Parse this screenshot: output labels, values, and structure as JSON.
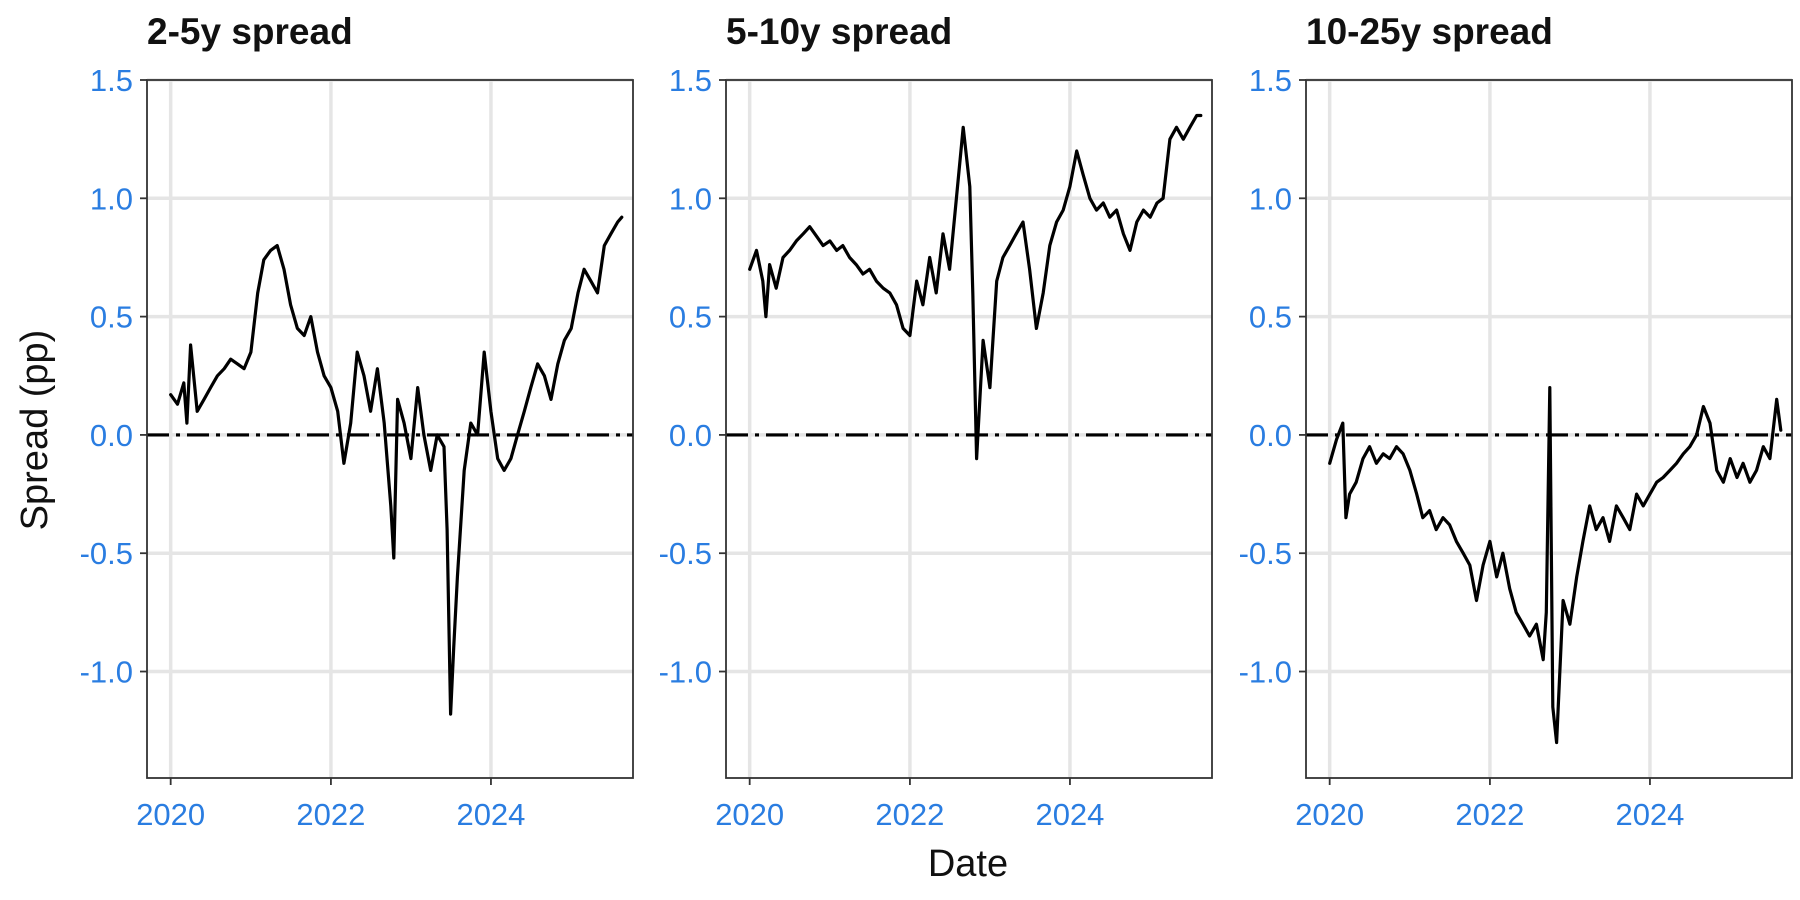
{
  "chart_data": {
    "type": "line",
    "xlabel": "Date",
    "ylabel": "Spread (pp)",
    "ylim": [
      -1.45,
      1.5
    ],
    "yticks": [
      -1.0,
      -0.5,
      0.0,
      0.5,
      1.0,
      1.5
    ],
    "ytick_labels": [
      "-1.0",
      "-0.5",
      "0.0",
      "0.5",
      "1.0",
      "1.5"
    ],
    "xlim": [
      "2019-09-15",
      "2025-10-10"
    ],
    "xticks": [
      "2020-01-01",
      "2022-01-01",
      "2024-01-01"
    ],
    "xtick_labels": [
      "2020",
      "2022",
      "2024"
    ],
    "grid": true,
    "reference_line": {
      "y": 0.0,
      "style": "dashdot"
    },
    "panels": [
      {
        "title": "2-5y spread",
        "x": [
          "2020-01-01",
          "2020-02-01",
          "2020-03-01",
          "2020-03-15",
          "2020-04-01",
          "2020-05-01",
          "2020-06-01",
          "2020-07-01",
          "2020-08-01",
          "2020-09-01",
          "2020-10-01",
          "2020-11-01",
          "2020-12-01",
          "2021-01-01",
          "2021-02-01",
          "2021-03-01",
          "2021-04-01",
          "2021-05-01",
          "2021-06-01",
          "2021-07-01",
          "2021-08-01",
          "2021-09-01",
          "2021-10-01",
          "2021-11-01",
          "2021-12-01",
          "2022-01-01",
          "2022-02-01",
          "2022-03-01",
          "2022-04-01",
          "2022-05-01",
          "2022-06-01",
          "2022-07-01",
          "2022-08-01",
          "2022-09-01",
          "2022-10-01",
          "2022-10-15",
          "2022-11-01",
          "2022-12-01",
          "2023-01-01",
          "2023-02-01",
          "2023-03-01",
          "2023-04-01",
          "2023-05-01",
          "2023-06-01",
          "2023-06-15",
          "2023-07-01",
          "2023-07-15",
          "2023-08-01",
          "2023-09-01",
          "2023-10-01",
          "2023-11-01",
          "2023-12-01",
          "2024-01-01",
          "2024-02-01",
          "2024-03-01",
          "2024-04-01",
          "2024-05-01",
          "2024-06-01",
          "2024-07-01",
          "2024-08-01",
          "2024-09-01",
          "2024-10-01",
          "2024-11-01",
          "2024-12-01",
          "2025-01-01",
          "2025-02-01",
          "2025-03-01",
          "2025-04-01",
          "2025-05-01",
          "2025-06-01",
          "2025-07-01",
          "2025-08-01",
          "2025-08-20"
        ],
        "y": [
          0.17,
          0.13,
          0.22,
          0.05,
          0.38,
          0.1,
          0.15,
          0.2,
          0.25,
          0.28,
          0.32,
          0.3,
          0.28,
          0.35,
          0.6,
          0.74,
          0.78,
          0.8,
          0.7,
          0.55,
          0.45,
          0.42,
          0.5,
          0.35,
          0.25,
          0.2,
          0.1,
          -0.12,
          0.05,
          0.35,
          0.25,
          0.1,
          0.28,
          0.05,
          -0.3,
          -0.52,
          0.15,
          0.05,
          -0.1,
          0.2,
          0.0,
          -0.15,
          0.0,
          -0.05,
          -0.4,
          -1.18,
          -0.9,
          -0.6,
          -0.15,
          0.05,
          0.0,
          0.35,
          0.1,
          -0.1,
          -0.15,
          -0.1,
          0.0,
          0.1,
          0.2,
          0.3,
          0.25,
          0.15,
          0.3,
          0.4,
          0.45,
          0.6,
          0.7,
          0.65,
          0.6,
          0.8,
          0.85,
          0.9,
          0.92
        ]
      },
      {
        "title": "5-10y spread",
        "x": [
          "2020-01-01",
          "2020-02-01",
          "2020-03-01",
          "2020-03-15",
          "2020-04-01",
          "2020-05-01",
          "2020-06-01",
          "2020-07-01",
          "2020-08-01",
          "2020-09-01",
          "2020-10-01",
          "2020-11-01",
          "2020-12-01",
          "2021-01-01",
          "2021-02-01",
          "2021-03-01",
          "2021-04-01",
          "2021-05-01",
          "2021-06-01",
          "2021-07-01",
          "2021-08-01",
          "2021-09-01",
          "2021-10-01",
          "2021-11-01",
          "2021-12-01",
          "2022-01-01",
          "2022-02-01",
          "2022-03-01",
          "2022-04-01",
          "2022-05-01",
          "2022-06-01",
          "2022-07-01",
          "2022-08-01",
          "2022-09-01",
          "2022-10-01",
          "2022-10-15",
          "2022-11-01",
          "2022-12-01",
          "2023-01-01",
          "2023-02-01",
          "2023-03-01",
          "2023-04-01",
          "2023-05-01",
          "2023-06-01",
          "2023-07-01",
          "2023-08-01",
          "2023-09-01",
          "2023-10-01",
          "2023-11-01",
          "2023-12-01",
          "2024-01-01",
          "2024-02-01",
          "2024-03-01",
          "2024-04-01",
          "2024-05-01",
          "2024-06-01",
          "2024-07-01",
          "2024-08-01",
          "2024-09-01",
          "2024-10-01",
          "2024-11-01",
          "2024-12-01",
          "2025-01-01",
          "2025-02-01",
          "2025-03-01",
          "2025-04-01",
          "2025-05-01",
          "2025-06-01",
          "2025-07-01",
          "2025-08-01",
          "2025-08-20"
        ],
        "y": [
          0.7,
          0.78,
          0.65,
          0.5,
          0.72,
          0.62,
          0.75,
          0.78,
          0.82,
          0.85,
          0.88,
          0.84,
          0.8,
          0.82,
          0.78,
          0.8,
          0.75,
          0.72,
          0.68,
          0.7,
          0.65,
          0.62,
          0.6,
          0.55,
          0.45,
          0.42,
          0.65,
          0.55,
          0.75,
          0.6,
          0.85,
          0.7,
          1.0,
          1.3,
          1.05,
          0.6,
          -0.1,
          0.4,
          0.2,
          0.65,
          0.75,
          0.8,
          0.85,
          0.9,
          0.7,
          0.45,
          0.6,
          0.8,
          0.9,
          0.95,
          1.05,
          1.2,
          1.1,
          1.0,
          0.95,
          0.98,
          0.92,
          0.95,
          0.85,
          0.78,
          0.9,
          0.95,
          0.92,
          0.98,
          1.0,
          1.25,
          1.3,
          1.25,
          1.3,
          1.35,
          1.35
        ]
      },
      {
        "title": "10-25y spread",
        "x": [
          "2020-01-01",
          "2020-02-01",
          "2020-03-01",
          "2020-03-15",
          "2020-04-01",
          "2020-05-01",
          "2020-06-01",
          "2020-07-01",
          "2020-08-01",
          "2020-09-01",
          "2020-10-01",
          "2020-11-01",
          "2020-12-01",
          "2021-01-01",
          "2021-02-01",
          "2021-03-01",
          "2021-04-01",
          "2021-05-01",
          "2021-06-01",
          "2021-07-01",
          "2021-08-01",
          "2021-09-01",
          "2021-10-01",
          "2021-11-01",
          "2021-12-01",
          "2022-01-01",
          "2022-02-01",
          "2022-03-01",
          "2022-04-01",
          "2022-05-01",
          "2022-06-01",
          "2022-07-01",
          "2022-08-01",
          "2022-09-01",
          "2022-09-15",
          "2022-10-01",
          "2022-10-15",
          "2022-11-01",
          "2022-12-01",
          "2023-01-01",
          "2023-02-01",
          "2023-03-01",
          "2023-04-01",
          "2023-05-01",
          "2023-06-01",
          "2023-07-01",
          "2023-08-01",
          "2023-09-01",
          "2023-10-01",
          "2023-11-01",
          "2023-12-01",
          "2024-01-01",
          "2024-02-01",
          "2024-03-01",
          "2024-04-01",
          "2024-05-01",
          "2024-06-01",
          "2024-07-01",
          "2024-08-01",
          "2024-09-01",
          "2024-10-01",
          "2024-11-01",
          "2024-12-01",
          "2025-01-01",
          "2025-02-01",
          "2025-03-01",
          "2025-04-01",
          "2025-05-01",
          "2025-06-01",
          "2025-07-01",
          "2025-08-01",
          "2025-08-20"
        ],
        "y": [
          -0.12,
          -0.02,
          0.05,
          -0.35,
          -0.25,
          -0.2,
          -0.1,
          -0.05,
          -0.12,
          -0.08,
          -0.1,
          -0.05,
          -0.08,
          -0.15,
          -0.25,
          -0.35,
          -0.32,
          -0.4,
          -0.35,
          -0.38,
          -0.45,
          -0.5,
          -0.55,
          -0.7,
          -0.55,
          -0.45,
          -0.6,
          -0.5,
          -0.65,
          -0.75,
          -0.8,
          -0.85,
          -0.8,
          -0.95,
          -0.75,
          0.2,
          -1.15,
          -1.3,
          -0.7,
          -0.8,
          -0.6,
          -0.45,
          -0.3,
          -0.4,
          -0.35,
          -0.45,
          -0.3,
          -0.35,
          -0.4,
          -0.25,
          -0.3,
          -0.25,
          -0.2,
          -0.18,
          -0.15,
          -0.12,
          -0.08,
          -0.05,
          0.0,
          0.12,
          0.05,
          -0.15,
          -0.2,
          -0.1,
          -0.18,
          -0.12,
          -0.2,
          -0.15,
          -0.05,
          -0.1,
          0.15,
          0.02
        ]
      }
    ]
  }
}
